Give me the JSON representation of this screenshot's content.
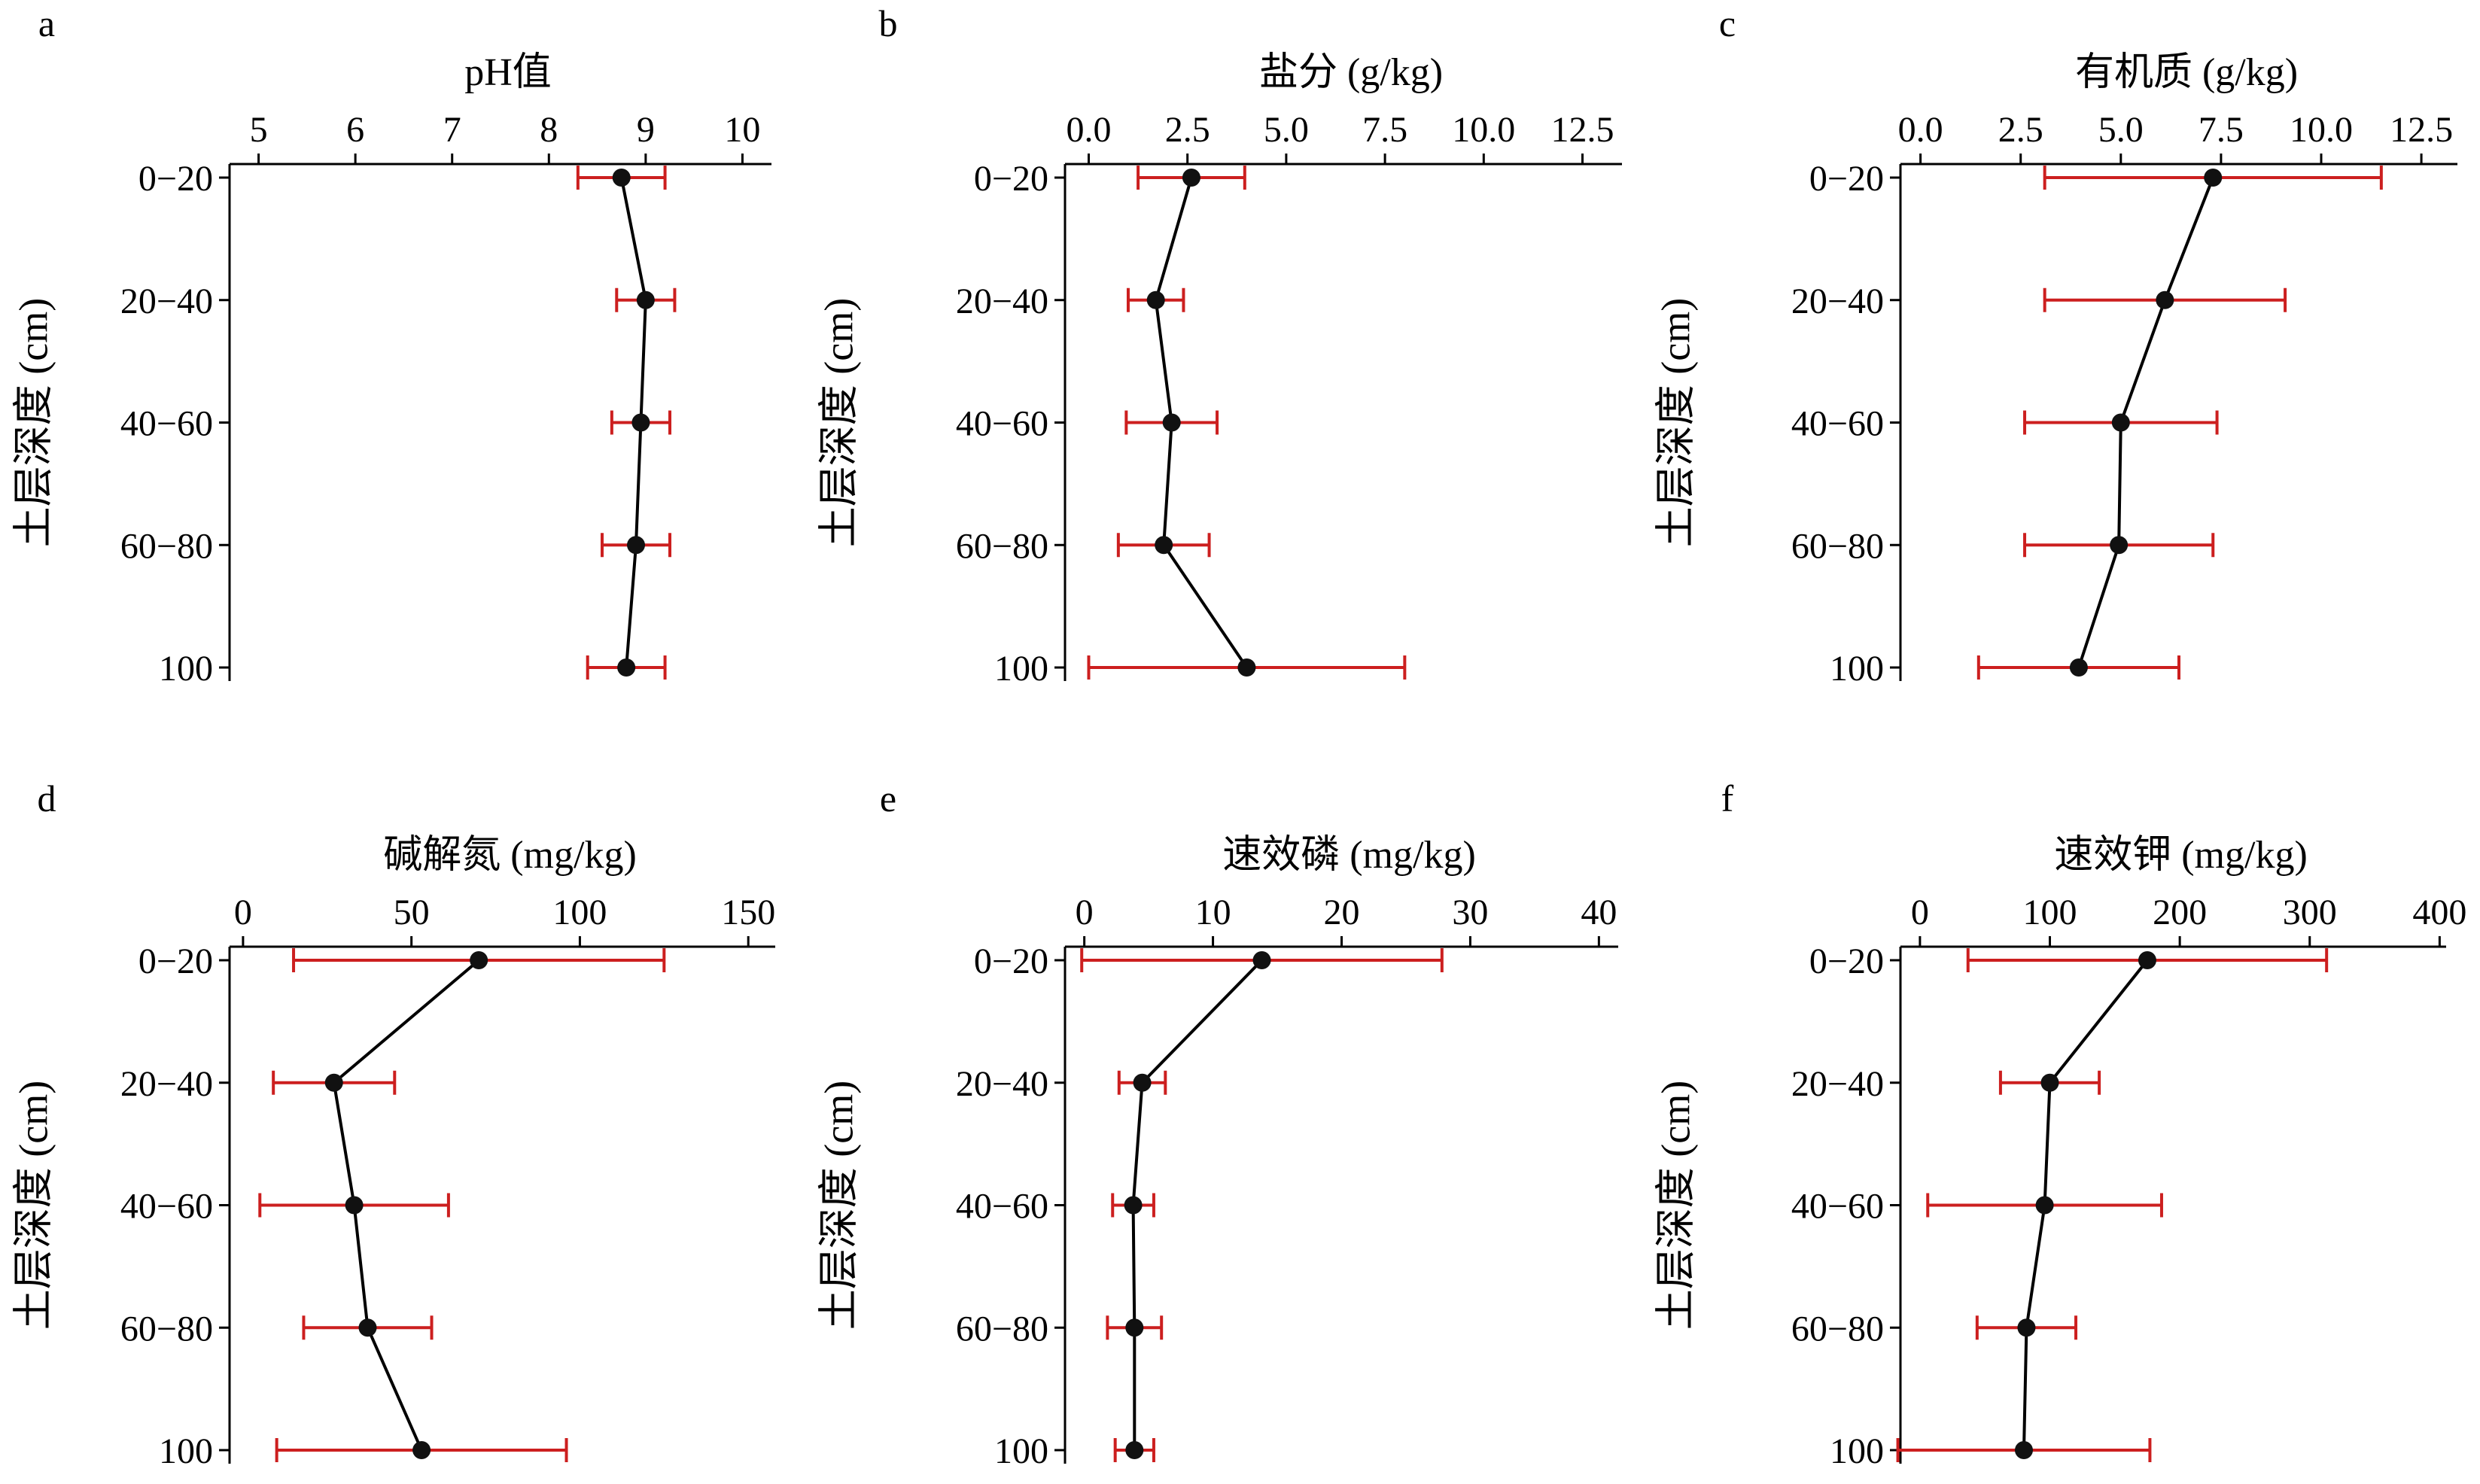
{
  "figure": {
    "y_axis_label": "土层深度 (cm)",
    "depth_categories": [
      "0−20",
      "20−40",
      "40−60",
      "60−80",
      "100"
    ],
    "colors": {
      "line": "#000000",
      "marker": "#111111",
      "error_bar": "#cc1f1f",
      "axis": "#000000"
    }
  },
  "chart_data": [
    {
      "type": "line",
      "panel": "a",
      "title": "pH值",
      "xlim": [
        4.7,
        10.3
      ],
      "xticks": [
        5,
        6,
        7,
        8,
        9,
        10
      ],
      "tick_labels": [
        "5",
        "6",
        "7",
        "8",
        "9",
        "10"
      ],
      "categories": [
        "0−20",
        "20−40",
        "40−60",
        "60−80",
        "100"
      ],
      "values": [
        8.75,
        9.0,
        8.95,
        8.9,
        8.8
      ],
      "error": [
        0.45,
        0.3,
        0.3,
        0.35,
        0.4
      ]
    },
    {
      "type": "line",
      "panel": "b",
      "title": "盐分 (g/kg)",
      "xlim": [
        -0.6,
        13.5
      ],
      "xticks": [
        0,
        2.5,
        5,
        7.5,
        10,
        12.5
      ],
      "tick_labels": [
        "0.0",
        "2.5",
        "5.0",
        "7.5",
        "10.0",
        "12.5"
      ],
      "categories": [
        "0−20",
        "20−40",
        "40−60",
        "60−80",
        "100"
      ],
      "values": [
        2.6,
        1.7,
        2.1,
        1.9,
        4.0
      ],
      "error": [
        1.35,
        0.7,
        1.15,
        1.15,
        4.0
      ]
    },
    {
      "type": "line",
      "panel": "c",
      "title": "有机质 (g/kg)",
      "xlim": [
        -0.5,
        13.4
      ],
      "xticks": [
        0,
        2.5,
        5,
        7.5,
        10,
        12.5
      ],
      "tick_labels": [
        "0.0",
        "2.5",
        "5.0",
        "7.5",
        "10.0",
        "12.5"
      ],
      "categories": [
        "0−20",
        "20−40",
        "40−60",
        "60−80",
        "100"
      ],
      "values": [
        7.3,
        6.1,
        5.0,
        4.95,
        3.95
      ],
      "error": [
        4.2,
        3.0,
        2.4,
        2.35,
        2.5
      ]
    },
    {
      "type": "line",
      "panel": "d",
      "title": "碱解氮 (mg/kg)",
      "xlim": [
        -4,
        158
      ],
      "xticks": [
        0,
        50,
        100,
        150
      ],
      "tick_labels": [
        "0",
        "50",
        "100",
        "150"
      ],
      "categories": [
        "0−20",
        "20−40",
        "40−60",
        "60−80",
        "100"
      ],
      "values": [
        70,
        27,
        33,
        37,
        53
      ],
      "error": [
        55,
        18,
        28,
        19,
        43
      ]
    },
    {
      "type": "line",
      "panel": "e",
      "title": "速效磷 (mg/kg)",
      "xlim": [
        -1.5,
        41.5
      ],
      "xticks": [
        0,
        10,
        20,
        30,
        40
      ],
      "tick_labels": [
        "0",
        "10",
        "20",
        "30",
        "40"
      ],
      "categories": [
        "0−20",
        "20−40",
        "40−60",
        "60−80",
        "100"
      ],
      "values": [
        13.8,
        4.5,
        3.8,
        3.9,
        3.9
      ],
      "error": [
        14.0,
        1.8,
        1.6,
        2.1,
        1.5
      ]
    },
    {
      "type": "line",
      "panel": "f",
      "title": "速效钾 (mg/kg)",
      "xlim": [
        -15,
        405
      ],
      "xticks": [
        0,
        100,
        200,
        300,
        400
      ],
      "tick_labels": [
        "0",
        "100",
        "200",
        "300",
        "400"
      ],
      "categories": [
        "0−20",
        "20−40",
        "40−60",
        "60−80",
        "100"
      ],
      "values": [
        175,
        100,
        96,
        82,
        80
      ],
      "error": [
        138,
        38,
        90,
        38,
        97
      ]
    }
  ]
}
